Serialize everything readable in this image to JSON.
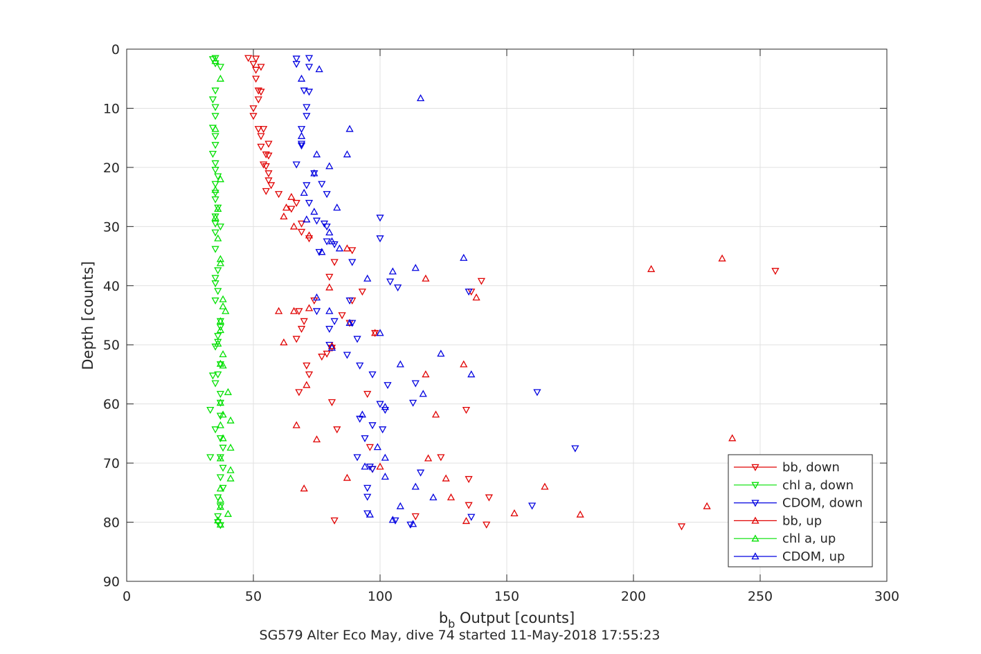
{
  "figure": {
    "caption": "SG579 Alter Eco May, dive 74 started 11-May-2018 17:55:23"
  },
  "chart_data": {
    "type": "scatter",
    "title": "",
    "xlabel_main": "b",
    "xlabel_sub": "b",
    "xlabel_rest": " Output [counts]",
    "ylabel": "Depth [counts]",
    "xlim": [
      0,
      300
    ],
    "ylim": [
      0,
      90
    ],
    "y_reversed": true,
    "xticks": [
      0,
      50,
      100,
      150,
      200,
      250,
      300
    ],
    "yticks": [
      0,
      10,
      20,
      30,
      40,
      50,
      60,
      70,
      80,
      90
    ],
    "grid": true,
    "legend_position": "bottom-right",
    "series": [
      {
        "name": "bb, down",
        "color": "#e00000",
        "marker": "triangle-down",
        "points": [
          [
            48,
            1.5
          ],
          [
            50,
            2.5
          ],
          [
            51,
            1.6
          ],
          [
            53,
            3
          ],
          [
            51,
            3.5
          ],
          [
            51,
            5
          ],
          [
            52,
            7
          ],
          [
            53,
            7.2
          ],
          [
            52,
            8.5
          ],
          [
            50,
            10
          ],
          [
            50,
            11.3
          ],
          [
            52,
            13.5
          ],
          [
            54,
            13.5
          ],
          [
            53,
            14.7
          ],
          [
            56,
            16
          ],
          [
            53,
            16.5
          ],
          [
            55,
            17.8
          ],
          [
            56,
            18
          ],
          [
            54,
            19.5
          ],
          [
            55,
            19.8
          ],
          [
            56,
            21
          ],
          [
            56,
            22.2
          ],
          [
            57,
            23
          ],
          [
            55,
            24
          ],
          [
            60,
            24.5
          ],
          [
            67,
            26
          ],
          [
            65,
            27
          ],
          [
            69,
            29.5
          ],
          [
            69,
            30.9
          ],
          [
            72,
            32
          ],
          [
            80,
            38.5
          ],
          [
            82,
            36
          ],
          [
            89,
            34
          ],
          [
            93,
            41
          ],
          [
            89,
            42.5
          ],
          [
            74,
            42.5
          ],
          [
            68,
            44.3
          ],
          [
            81,
            50.5
          ],
          [
            79,
            51.5
          ],
          [
            77,
            52
          ],
          [
            85,
            45
          ],
          [
            88,
            46.3
          ],
          [
            70,
            46
          ],
          [
            69,
            47.3
          ],
          [
            67,
            49
          ],
          [
            98,
            48
          ],
          [
            71,
            53.5
          ],
          [
            72,
            55
          ],
          [
            68,
            58
          ],
          [
            81,
            59.7
          ],
          [
            95,
            58.3
          ],
          [
            134,
            61
          ],
          [
            83,
            64.3
          ],
          [
            96,
            67.3
          ],
          [
            124,
            69
          ],
          [
            97,
            71
          ],
          [
            140,
            39.2
          ],
          [
            136,
            41
          ],
          [
            135,
            72.7
          ],
          [
            143,
            75.8
          ],
          [
            135,
            77.1
          ],
          [
            114,
            79
          ],
          [
            82,
            79.7
          ],
          [
            142,
            80.4
          ],
          [
            219,
            80.7
          ],
          [
            256,
            37.5
          ]
        ]
      },
      {
        "name": "chl a, down",
        "color": "#00e000",
        "marker": "triangle-down",
        "points": [
          [
            35,
            1.5
          ],
          [
            34,
            1.7
          ],
          [
            35,
            2.4
          ],
          [
            37,
            3
          ],
          [
            35,
            7
          ],
          [
            34,
            8.5
          ],
          [
            35,
            9.8
          ],
          [
            35,
            11.3
          ],
          [
            34,
            13.3
          ],
          [
            35,
            14.7
          ],
          [
            35,
            16.2
          ],
          [
            34,
            17.7
          ],
          [
            35,
            19.3
          ],
          [
            35,
            20.4
          ],
          [
            36,
            21.5
          ],
          [
            35,
            22.8
          ],
          [
            35,
            24.3
          ],
          [
            35,
            25.4
          ],
          [
            36,
            26.8
          ],
          [
            35,
            28.3
          ],
          [
            35,
            29.5
          ],
          [
            37,
            30
          ],
          [
            35,
            31
          ],
          [
            35,
            33.8
          ],
          [
            36,
            37.4
          ],
          [
            35,
            38.7
          ],
          [
            35,
            39.6
          ],
          [
            36,
            40.9
          ],
          [
            35,
            42.5
          ],
          [
            37,
            46
          ],
          [
            37,
            47
          ],
          [
            36,
            48.5
          ],
          [
            36,
            49.5
          ],
          [
            35,
            50.3
          ],
          [
            37,
            53.3
          ],
          [
            34,
            55.2
          ],
          [
            36,
            55
          ],
          [
            35,
            56.5
          ],
          [
            37,
            58.3
          ],
          [
            37,
            59.8
          ],
          [
            33,
            61
          ],
          [
            37,
            62
          ],
          [
            35,
            64.3
          ],
          [
            37,
            65.8
          ],
          [
            38,
            67.4
          ],
          [
            33,
            69
          ],
          [
            37,
            69
          ],
          [
            38,
            70.8
          ],
          [
            37,
            72.4
          ],
          [
            38,
            74.2
          ],
          [
            36,
            75.8
          ],
          [
            37,
            77.3
          ],
          [
            36,
            79
          ],
          [
            36,
            80
          ],
          [
            37,
            80.5
          ]
        ]
      },
      {
        "name": "CDOM, down",
        "color": "#0000e0",
        "marker": "triangle-down",
        "points": [
          [
            67,
            1.6
          ],
          [
            72,
            1.5
          ],
          [
            67,
            2.5
          ],
          [
            72,
            3
          ],
          [
            70,
            7
          ],
          [
            72,
            7.2
          ],
          [
            71,
            9.8
          ],
          [
            71,
            11.3
          ],
          [
            69,
            13.5
          ],
          [
            69,
            16
          ],
          [
            69,
            16.3
          ],
          [
            67,
            19.5
          ],
          [
            74,
            21
          ],
          [
            71,
            23
          ],
          [
            77,
            22.8
          ],
          [
            79,
            24.5
          ],
          [
            72,
            26
          ],
          [
            75,
            29
          ],
          [
            78,
            29.5
          ],
          [
            79,
            30
          ],
          [
            79,
            32.5
          ],
          [
            82,
            33
          ],
          [
            76,
            34.3
          ],
          [
            89,
            36
          ],
          [
            100,
            28.5
          ],
          [
            100,
            32
          ],
          [
            104,
            39.3
          ],
          [
            107,
            40.3
          ],
          [
            135,
            41
          ],
          [
            88,
            42.5
          ],
          [
            75,
            44.3
          ],
          [
            82,
            46
          ],
          [
            89,
            46.3
          ],
          [
            80,
            47.3
          ],
          [
            91,
            49
          ],
          [
            80,
            50
          ],
          [
            87,
            51.7
          ],
          [
            92,
            53.5
          ],
          [
            97,
            55
          ],
          [
            103,
            56.8
          ],
          [
            114,
            56.5
          ],
          [
            113,
            59.8
          ],
          [
            100,
            60
          ],
          [
            102,
            61
          ],
          [
            92,
            62.5
          ],
          [
            97,
            63.6
          ],
          [
            101,
            64.3
          ],
          [
            94,
            65.8
          ],
          [
            91,
            69
          ],
          [
            96,
            70.6
          ],
          [
            97,
            71
          ],
          [
            116,
            71.6
          ],
          [
            95,
            74.2
          ],
          [
            95,
            75.7
          ],
          [
            160,
            77.2
          ],
          [
            95,
            78.5
          ],
          [
            106,
            79.7
          ],
          [
            112,
            80.4
          ],
          [
            136,
            79.1
          ],
          [
            162,
            58
          ],
          [
            177,
            67.5
          ]
        ]
      },
      {
        "name": "bb, up",
        "color": "#e00000",
        "marker": "triangle-up",
        "points": [
          [
            65,
            25
          ],
          [
            63,
            26.8
          ],
          [
            62,
            28.3
          ],
          [
            66,
            30
          ],
          [
            72,
            31.5
          ],
          [
            87,
            33.7
          ],
          [
            138,
            42
          ],
          [
            118,
            38.8
          ],
          [
            80,
            40.3
          ],
          [
            60,
            44.3
          ],
          [
            66,
            44.3
          ],
          [
            62,
            49.6
          ],
          [
            67,
            63.6
          ],
          [
            72,
            43.8
          ],
          [
            98,
            48
          ],
          [
            81,
            50.2
          ],
          [
            133,
            53.3
          ],
          [
            118,
            55
          ],
          [
            71,
            56.8
          ],
          [
            75,
            66
          ],
          [
            122,
            61.8
          ],
          [
            87,
            72.5
          ],
          [
            70,
            74.3
          ],
          [
            119,
            69.2
          ],
          [
            126,
            72.6
          ],
          [
            100,
            70.6
          ],
          [
            128,
            75.8
          ],
          [
            153,
            78.5
          ],
          [
            134,
            79.8
          ],
          [
            165,
            74
          ],
          [
            179,
            78.7
          ],
          [
            229,
            77.3
          ],
          [
            207,
            37.2
          ],
          [
            235,
            35.4
          ],
          [
            239,
            65.8
          ]
        ]
      },
      {
        "name": "chl a, up",
        "color": "#00e000",
        "marker": "triangle-up",
        "points": [
          [
            35,
            2
          ],
          [
            37,
            5
          ],
          [
            35,
            13.5
          ],
          [
            37,
            22
          ],
          [
            35,
            23.8
          ],
          [
            36,
            27
          ],
          [
            35,
            28.5
          ],
          [
            36,
            32
          ],
          [
            37,
            35.5
          ],
          [
            37,
            36.2
          ],
          [
            38,
            42.3
          ],
          [
            38,
            43.5
          ],
          [
            39,
            44.3
          ],
          [
            37,
            46
          ],
          [
            37,
            47.5
          ],
          [
            36,
            49.8
          ],
          [
            38,
            51.6
          ],
          [
            37,
            53.2
          ],
          [
            38,
            53.5
          ],
          [
            40,
            58
          ],
          [
            37,
            59.8
          ],
          [
            38,
            61.8
          ],
          [
            41,
            62.8
          ],
          [
            37,
            63.6
          ],
          [
            38,
            65.8
          ],
          [
            41,
            67.4
          ],
          [
            37,
            69.2
          ],
          [
            41,
            71.2
          ],
          [
            41,
            72.6
          ],
          [
            37,
            74.3
          ],
          [
            37,
            76.2
          ],
          [
            37,
            77.4
          ],
          [
            40,
            78.6
          ],
          [
            36,
            79.7
          ],
          [
            37,
            80.4
          ]
        ]
      },
      {
        "name": "CDOM, up",
        "color": "#0000e0",
        "marker": "triangle-up",
        "points": [
          [
            76,
            3.4
          ],
          [
            69,
            5
          ],
          [
            116,
            8.3
          ],
          [
            88,
            13.5
          ],
          [
            69,
            14.7
          ],
          [
            75,
            17.8
          ],
          [
            87,
            17.8
          ],
          [
            80,
            19.8
          ],
          [
            74,
            21
          ],
          [
            70,
            24.3
          ],
          [
            74,
            27.5
          ],
          [
            83,
            26.8
          ],
          [
            71,
            28.8
          ],
          [
            80,
            31
          ],
          [
            81,
            32.5
          ],
          [
            84,
            33.7
          ],
          [
            77,
            34.3
          ],
          [
            133,
            35.3
          ],
          [
            114,
            37
          ],
          [
            105,
            37.6
          ],
          [
            95,
            38.8
          ],
          [
            75,
            42
          ],
          [
            80,
            44.3
          ],
          [
            88,
            46.3
          ],
          [
            100,
            48
          ],
          [
            81,
            50.5
          ],
          [
            124,
            51.5
          ],
          [
            108,
            53.3
          ],
          [
            136,
            55
          ],
          [
            117,
            58.3
          ],
          [
            93,
            61.8
          ],
          [
            102,
            60.5
          ],
          [
            99,
            67.3
          ],
          [
            94,
            70.6
          ],
          [
            102,
            69.1
          ],
          [
            102,
            72.3
          ],
          [
            114,
            74
          ],
          [
            121,
            75.8
          ],
          [
            108,
            77.3
          ],
          [
            96,
            78.7
          ],
          [
            105,
            79.6
          ],
          [
            113,
            80.3
          ]
        ]
      }
    ]
  }
}
